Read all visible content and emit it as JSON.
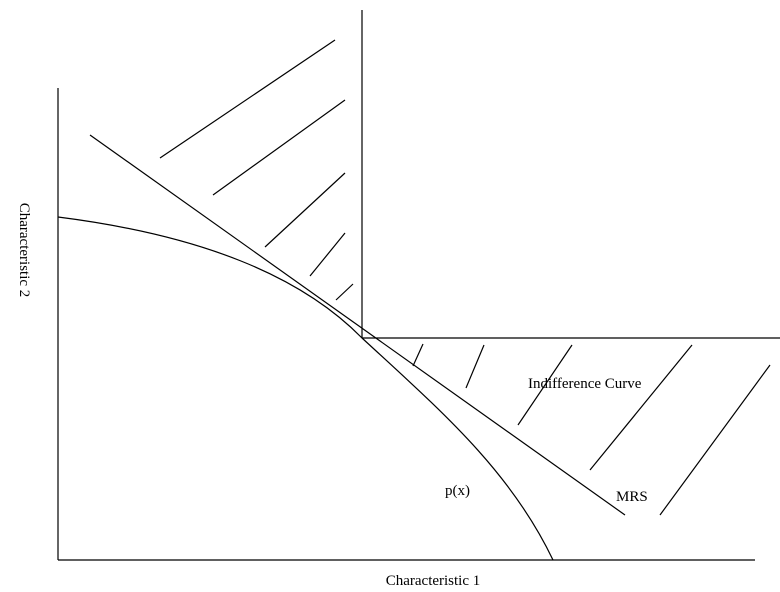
{
  "axes": {
    "x_label": "Characteristic 1",
    "y_label": "Characteristic 2"
  },
  "labels": {
    "indifference_curve": "Indifference Curve",
    "mrs": "MRS",
    "production_frontier": "p(x)"
  },
  "colors": {
    "line": "#000000",
    "background": "#ffffff"
  }
}
